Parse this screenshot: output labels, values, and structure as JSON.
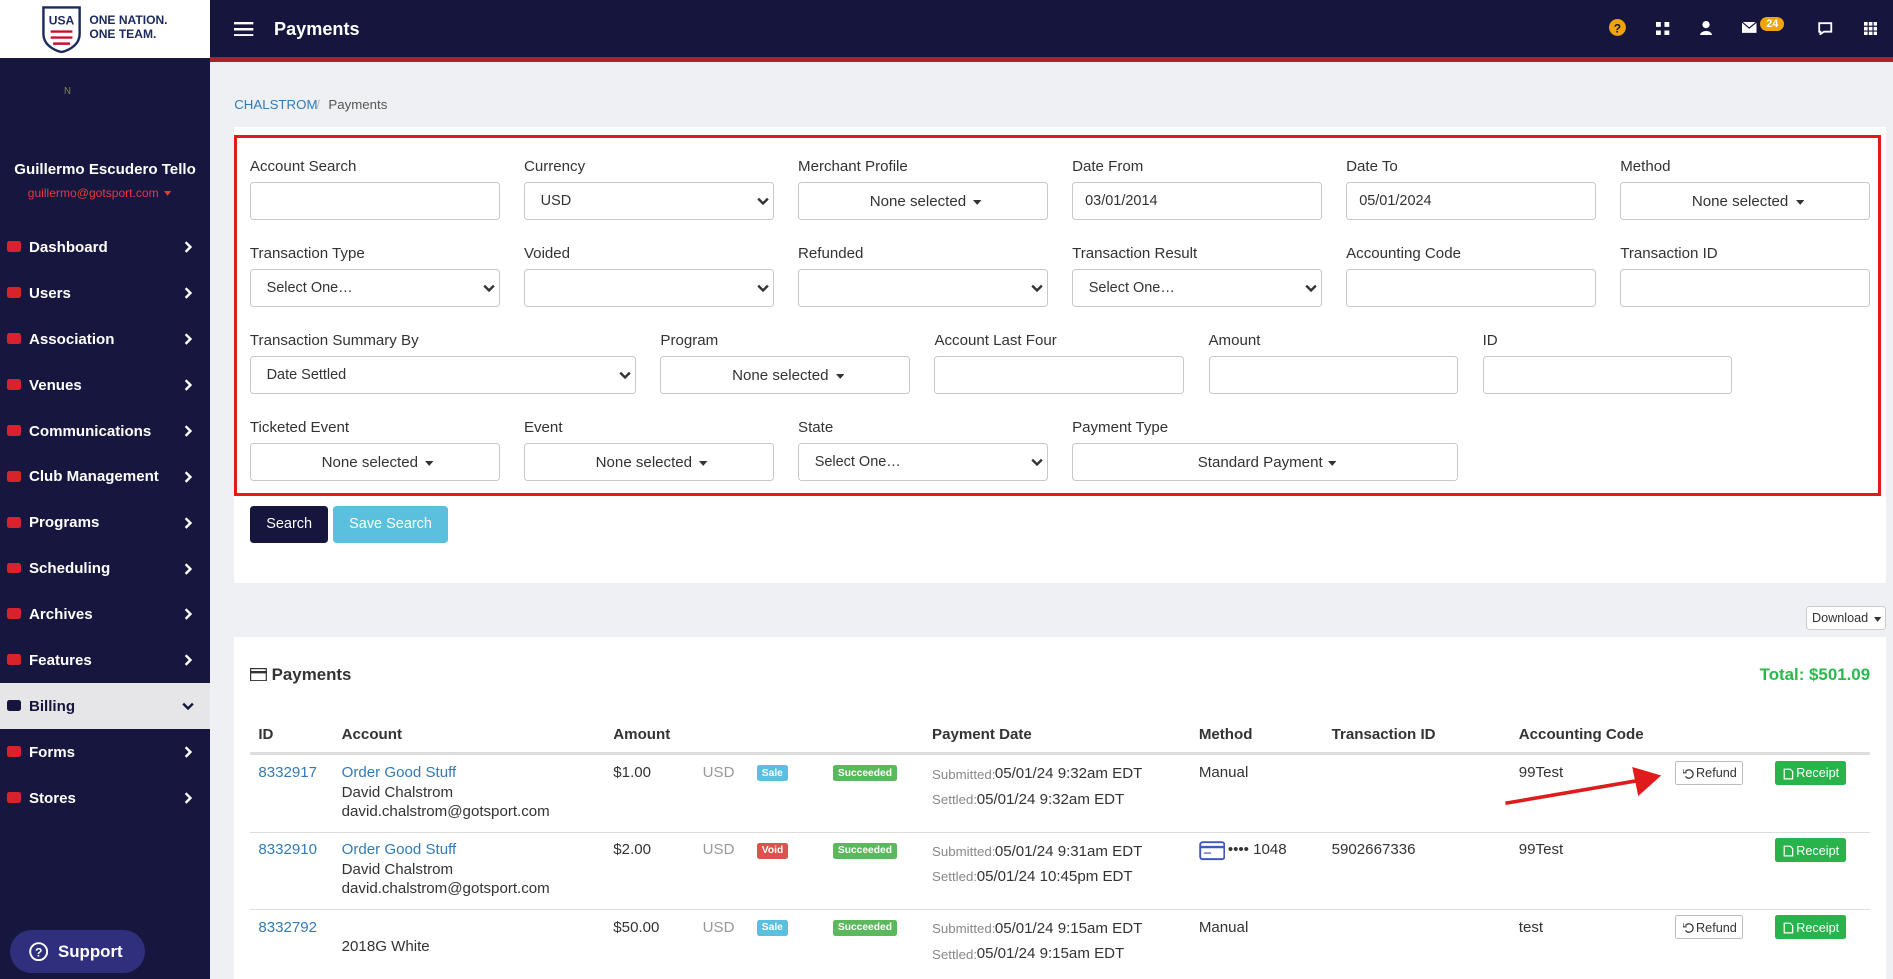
{
  "header": {
    "logo_line1": "ONE NATION.",
    "logo_line2": "ONE TEAM.",
    "title": "Payments",
    "mail_badge": "24"
  },
  "sidebar": {
    "avatar": "N",
    "user_name": "Guillermo Escudero Tello",
    "user_email": "guillermo@gotsport.com",
    "nav": [
      {
        "label": "Dashboard"
      },
      {
        "label": "Users"
      },
      {
        "label": "Association"
      },
      {
        "label": "Venues"
      },
      {
        "label": "Communications"
      },
      {
        "label": "Club Management"
      },
      {
        "label": "Programs"
      },
      {
        "label": "Scheduling"
      },
      {
        "label": "Archives"
      },
      {
        "label": "Features"
      },
      {
        "label": "Billing",
        "expanded": true
      },
      {
        "label": "Forms"
      },
      {
        "label": "Stores"
      }
    ],
    "support": "Support"
  },
  "breadcrumb": [
    "CHALSTROM",
    "Payments"
  ],
  "filters": [
    [
      {
        "label": "Account Search",
        "type": "text"
      },
      {
        "label": "Currency",
        "type": "select",
        "value": "USD"
      },
      {
        "label": "Merchant Profile",
        "type": "multiselect",
        "value": "None selected"
      },
      {
        "label": "Date From",
        "type": "text",
        "value": "03/01/2014"
      },
      {
        "label": "Date To",
        "type": "text",
        "value": "05/01/2024"
      },
      {
        "label": "Method",
        "type": "multiselect",
        "value": "None selected"
      }
    ],
    [
      {
        "label": "Transaction Type",
        "type": "select",
        "value": "Select One…"
      },
      {
        "label": "Voided",
        "type": "select"
      },
      {
        "label": "Refunded",
        "type": "select"
      },
      {
        "label": "Transaction Result",
        "type": "select",
        "value": "Select One…"
      },
      {
        "label": "Accounting Code",
        "type": "text"
      },
      {
        "label": "Transaction ID",
        "type": "text"
      }
    ],
    [
      {
        "label": "Transaction Summary By",
        "type": "select",
        "value": "Date Settled"
      },
      {
        "label": "Program",
        "type": "multiselect",
        "value": "None selected"
      },
      {
        "label": "Account Last Four",
        "type": "text"
      },
      {
        "label": "Amount",
        "type": "text"
      },
      {
        "label": "ID",
        "type": "text"
      }
    ],
    [
      {
        "label": "Ticketed Event",
        "type": "multiselect",
        "value": "None selected"
      },
      {
        "label": "Event",
        "type": "multiselect",
        "value": "None selected"
      },
      {
        "label": "State",
        "type": "select",
        "value": "Select One…"
      },
      {
        "label": "Payment Type",
        "type": "multiselect",
        "value": "Standard Payment"
      }
    ]
  ],
  "buttons": {
    "search": "Search",
    "save_search": "Save Search",
    "download": "Download"
  },
  "payments": {
    "title": "Payments",
    "total": "Total: $501.09",
    "columns": [
      "ID",
      "Account",
      "Amount",
      "Payment Date",
      "Method",
      "Transaction ID",
      "Accounting Code"
    ],
    "submitted_label": "Submitted:",
    "settled_label": "Settled:",
    "rows": [
      {
        "id": "8332917",
        "account_link": "Order Good Stuff",
        "account_name": "David Chalstrom",
        "account_email": "david.chalstrom@gotsport.com",
        "amount": "$1.00",
        "currency": "USD",
        "kind": "Sale",
        "status": "Succeeded",
        "submitted": "05/01/24 9:32am EDT",
        "settled": "05/01/24 9:32am EDT",
        "method": "Manual",
        "accounting_code": "99Test",
        "actions": [
          "Refund",
          "Receipt"
        ]
      },
      {
        "id": "8332910",
        "account_link": "Order Good Stuff",
        "account_name": "David Chalstrom",
        "account_email": "david.chalstrom@gotsport.com",
        "amount": "$2.00",
        "currency": "USD",
        "kind": "Void",
        "status": "Succeeded",
        "submitted": "05/01/24 9:31am EDT",
        "settled": "05/01/24 10:45pm EDT",
        "method": "•••• 1048",
        "method_card": true,
        "transaction_id": "5902667336",
        "accounting_code": "99Test",
        "actions": [
          "Receipt"
        ]
      },
      {
        "id": "8332792",
        "account_name": "2018G White",
        "amount": "$50.00",
        "currency": "USD",
        "kind": "Sale",
        "status": "Succeeded",
        "submitted": "05/01/24 9:15am EDT",
        "settled": "05/01/24 9:15am EDT",
        "method": "Manual",
        "accounting_code": "test",
        "actions": [
          "Refund",
          "Receipt"
        ]
      }
    ]
  }
}
